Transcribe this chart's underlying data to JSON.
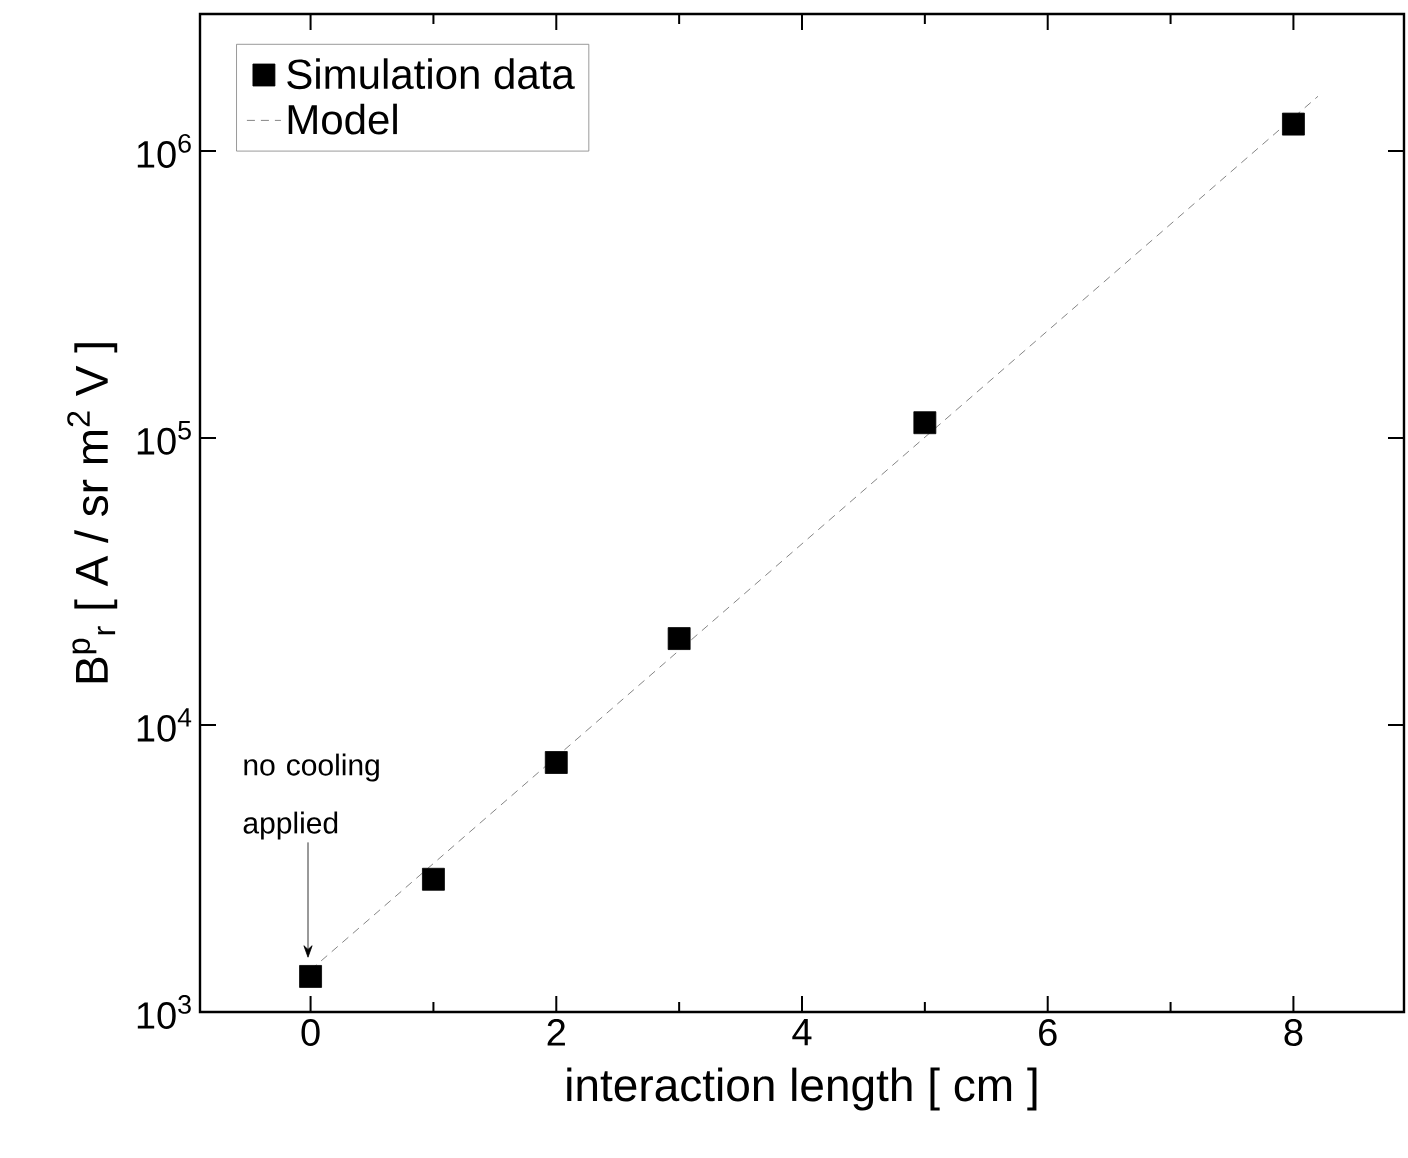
{
  "chart_data": {
    "type": "scatter",
    "xlabel": "interaction length [ cm ]",
    "ylabel": "B$^{p}$$_{r}$ [ A / sr m$^{2}$ V ]",
    "log": "y",
    "xlim": [
      -0.9,
      8.9
    ],
    "xticks": [
      0,
      2,
      4,
      6,
      8
    ],
    "ylim": [
      1000,
      3000000
    ],
    "yticks": [
      {
        "value": 1000,
        "label": "10$^{3}$"
      },
      {
        "value": 10000,
        "label": "10$^{4}$"
      },
      {
        "value": 100000,
        "label": "10$^{5}$"
      },
      {
        "value": 1000000,
        "label": "10$^{6}$"
      }
    ],
    "legend": "top left",
    "marker": "square",
    "series": [
      {
        "name": "Simulation data",
        "color": "#000000",
        "x": [
          0,
          1,
          2,
          3,
          5,
          8
        ],
        "values": [
          1330,
          2900,
          7400,
          20000,
          113000,
          1240000
        ]
      },
      {
        "name": "Model",
        "type": "line",
        "marker": "none",
        "color": "#666666",
        "line_style": "dashed",
        "x": [
          0,
          8.2
        ],
        "values": [
          1400,
          1550000
        ]
      }
    ],
    "annotations": [
      "no cooling applied"
    ]
  }
}
